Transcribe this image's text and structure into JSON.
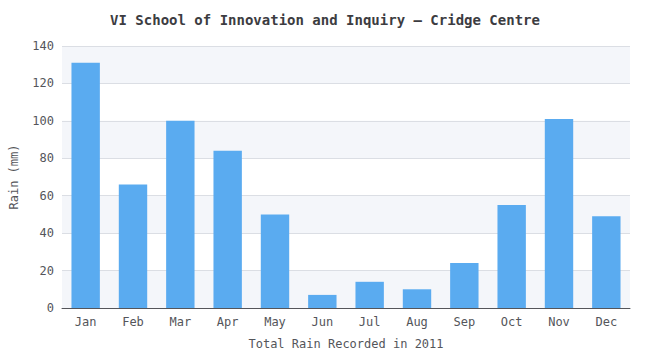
{
  "chart_data": {
    "type": "bar",
    "title": "VI School of Innovation and Inquiry – Cridge Centre",
    "xlabel": "Total Rain Recorded in 2011",
    "ylabel": "Rain (mm)",
    "categories": [
      "Jan",
      "Feb",
      "Mar",
      "Apr",
      "May",
      "Jun",
      "Jul",
      "Aug",
      "Sep",
      "Oct",
      "Nov",
      "Dec"
    ],
    "values": [
      131,
      66,
      100,
      84,
      50,
      7,
      14,
      10,
      24,
      55,
      101,
      49
    ],
    "color": "#5aabf0",
    "ylim": [
      0,
      140
    ],
    "yticks": [
      0,
      20,
      40,
      60,
      80,
      100,
      120,
      140
    ],
    "grid": true
  }
}
